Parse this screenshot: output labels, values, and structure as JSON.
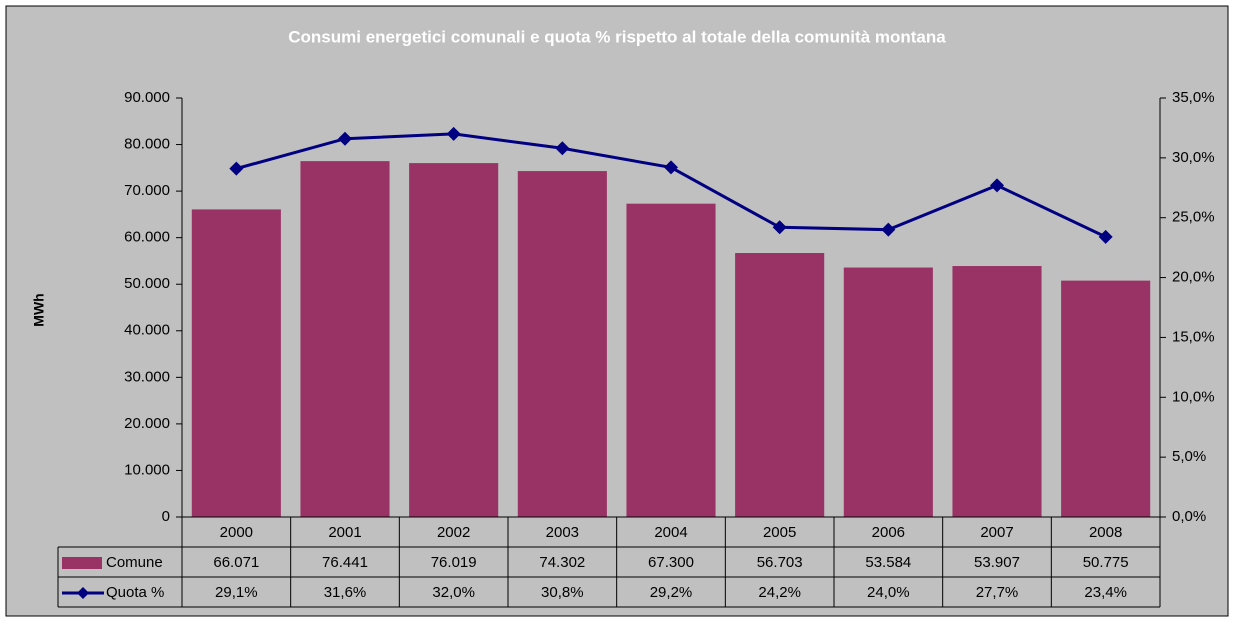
{
  "chart_data": {
    "type": "bar",
    "title": "Consumi energetici comunali e quota % rispetto al totale della comunità montana",
    "y_label": "MWh",
    "categories": [
      "2000",
      "2001",
      "2002",
      "2003",
      "2004",
      "2005",
      "2006",
      "2007",
      "2008"
    ],
    "series": [
      {
        "name": "Comune",
        "type": "bar",
        "color": "#993366",
        "values": [
          66071,
          76441,
          76019,
          74302,
          67300,
          56703,
          53584,
          53907,
          50775
        ],
        "value_labels": [
          "66.071",
          "76.441",
          "76.019",
          "74.302",
          "67.300",
          "56.703",
          "53.584",
          "53.907",
          "50.775"
        ]
      },
      {
        "name": "Quota %",
        "type": "line",
        "axis": "y2",
        "color": "#000080",
        "values": [
          29.1,
          31.6,
          32.0,
          30.8,
          29.2,
          24.2,
          24.0,
          27.7,
          23.4
        ],
        "value_labels": [
          "29,1%",
          "31,6%",
          "32,0%",
          "30,8%",
          "29,2%",
          "24,2%",
          "24,0%",
          "27,7%",
          "23,4%"
        ]
      }
    ],
    "ylim": [
      0,
      90000
    ],
    "yticks": [
      0,
      {
        "value": 10000,
        "label": "10.000"
      },
      {
        "value": 20000,
        "label": "20.000"
      },
      {
        "value": 30000,
        "label": "30.000"
      },
      {
        "value": 40000,
        "label": "40.000"
      },
      {
        "value": 50000,
        "label": "50.000"
      },
      {
        "value": 60000,
        "label": "60.000"
      },
      {
        "value": 70000,
        "label": "70.000"
      },
      {
        "value": 80000,
        "label": "80.000"
      },
      {
        "value": 90000,
        "label": "90.000"
      }
    ],
    "y2lim": [
      0,
      35
    ],
    "y2ticks": [
      {
        "value": 0,
        "label": "0,0%"
      },
      {
        "value": 5,
        "label": "5,0%"
      },
      {
        "value": 10,
        "label": "10,0%"
      },
      {
        "value": 15,
        "label": "15,0%"
      },
      {
        "value": 20,
        "label": "20,0%"
      },
      {
        "value": 25,
        "label": "25,0%"
      },
      {
        "value": 30,
        "label": "30,0%"
      },
      {
        "value": 35,
        "label": "35,0%"
      }
    ],
    "grid": false
  }
}
